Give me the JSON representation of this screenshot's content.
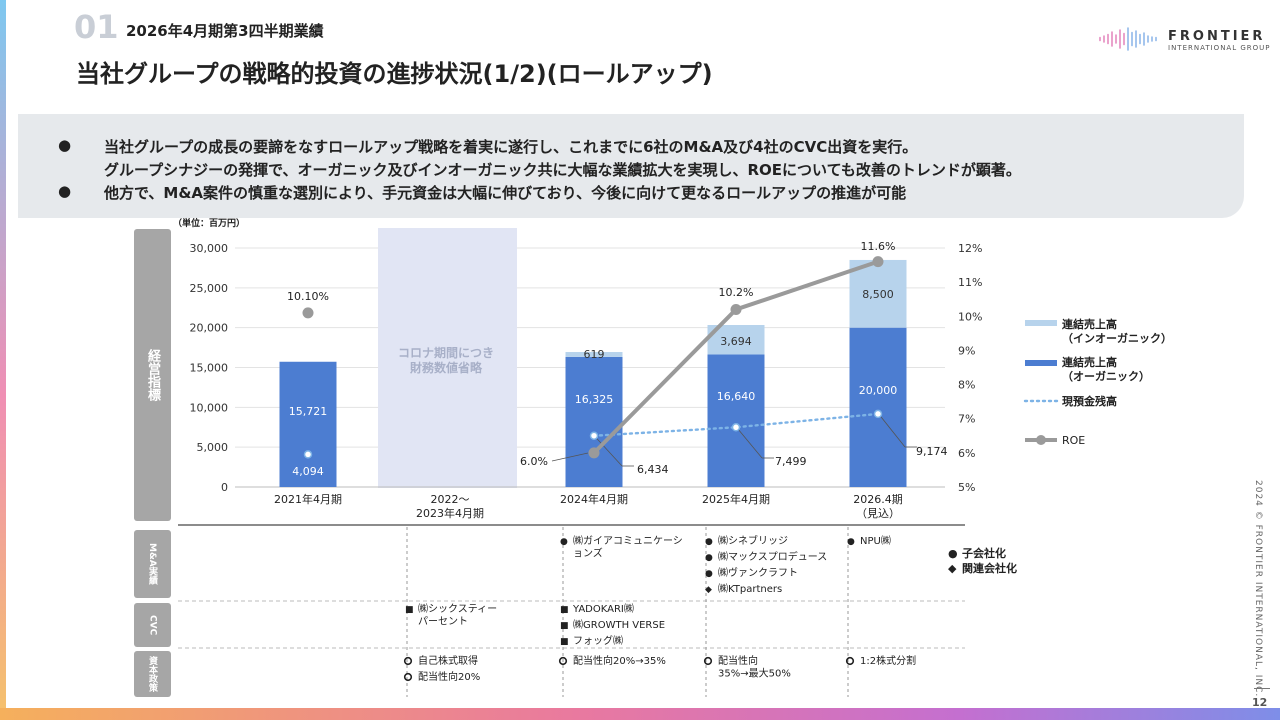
{
  "header": {
    "section_number": "01",
    "section_title": "2026年4月期第3四半期業績",
    "title": "当社グループの戦略的投資の進捗状況(1/2)(ロールアップ)",
    "logo_name": "FRONTIER",
    "logo_sub": "INTERNATIONAL GROUP"
  },
  "summary": {
    "bullets": [
      {
        "mark": "●",
        "lines": [
          "当社グループの成長の要諦をなすロールアップ戦略を着実に遂行し、これまでに6社のM&A及び4社のCVC出資を実行。",
          "グループシナジーの発揮で、オーガニック及びインオーガニック共に大幅な業績拡大を実現し、ROEについても改善のトレンドが顕著。"
        ]
      },
      {
        "mark": "●",
        "lines": [
          "他方で、M&A案件の慎重な選別により、手元資金は大幅に伸びており、今後に向けて更なるロールアップの推進が可能"
        ]
      }
    ]
  },
  "side_labels": {
    "kpi": "経営指標",
    "ma": "M&A実績",
    "cvc": "CVC",
    "capital": "資本政策"
  },
  "chart_data": {
    "type": "bar",
    "unit_label": "（単位：百万円）",
    "categories": [
      "2021年4月期",
      "2022～\n2023年4月期",
      "2024年4月期",
      "2025年4月期",
      "2026.4期\n（見込）"
    ],
    "series": [
      {
        "name": "連結売上高\n（オーガニック）",
        "type": "bar",
        "color": "#4c7dd1",
        "values": [
          15721,
          null,
          16325,
          16640,
          20000
        ],
        "labels": [
          "15,721",
          "",
          "16,325",
          "16,640",
          "20,000"
        ]
      },
      {
        "name": "連結売上高\n（インオーガニック）",
        "type": "bar",
        "color": "#b7d3ec",
        "values": [
          null,
          null,
          619,
          3694,
          8500
        ],
        "labels": [
          "",
          "",
          "619",
          "3,694",
          "8,500"
        ]
      },
      {
        "name": "現預金残高",
        "type": "line-dotted",
        "color": "#7db3e6",
        "values": [
          4094,
          null,
          6434,
          7499,
          9174
        ],
        "labels": [
          "4,094",
          "",
          "6,434",
          "7,499",
          "9,174"
        ]
      },
      {
        "name": "ROE",
        "type": "line",
        "color": "#9a9a9a",
        "axis": "right",
        "values": [
          10.1,
          null,
          6.0,
          10.2,
          11.6
        ],
        "labels": [
          "10.10%",
          "",
          "6.0%",
          "10.2%",
          "11.6%"
        ]
      }
    ],
    "left_axis": {
      "ticks": [
        0,
        5000,
        10000,
        15000,
        20000,
        25000,
        30000
      ],
      "tick_labels": [
        "0",
        "5,000",
        "10,000",
        "15,000",
        "20,000",
        "25,000",
        "30,000"
      ],
      "ylim": [
        0,
        30000
      ]
    },
    "right_axis": {
      "ticks": [
        5,
        6,
        7,
        8,
        9,
        10,
        11,
        12
      ],
      "tick_labels": [
        "5%",
        "6%",
        "7%",
        "8%",
        "9%",
        "10%",
        "11%",
        "12%"
      ],
      "ylim": [
        5,
        12
      ]
    },
    "covid_note": "コロナ期間につき\n財務数値省略",
    "legend_position": "right"
  },
  "events": {
    "ma": [
      [],
      [],
      [
        {
          "mark": "●",
          "text": "㈱ガイアコミュニケーシ\nョンズ"
        }
      ],
      [
        {
          "mark": "●",
          "text": "㈱シネブリッジ"
        },
        {
          "mark": "●",
          "text": "㈱マックスプロデュース"
        },
        {
          "mark": "●",
          "text": "㈱ヴァンクラフト"
        },
        {
          "mark": "◆",
          "text": "㈱KTpartners"
        }
      ],
      [
        {
          "mark": "●",
          "text": "NPU㈱"
        }
      ]
    ],
    "cvc": [
      [],
      [
        {
          "mark": "■",
          "text": "㈱シックスティー\nパーセント"
        }
      ],
      [
        {
          "mark": "■",
          "text": "YADOKARI㈱"
        },
        {
          "mark": "■",
          "text": "㈱GROWTH VERSE"
        },
        {
          "mark": "■",
          "text": "フォッグ㈱"
        }
      ],
      [],
      []
    ],
    "capital": [
      [],
      [
        {
          "mark": "○",
          "text": "自己株式取得"
        },
        {
          "mark": "○",
          "text": "配当性向20%"
        }
      ],
      [
        {
          "mark": "○",
          "text": "配当性向20%→35%"
        }
      ],
      [
        {
          "mark": "○",
          "text": "配当性向\n35%→最大50%"
        }
      ],
      [
        {
          "mark": "○",
          "text": "1:2株式分割"
        }
      ]
    ],
    "legend": [
      {
        "mark": "●",
        "text": "子会社化"
      },
      {
        "mark": "◆",
        "text": "関連会社化"
      }
    ]
  },
  "footer": {
    "copyright": "2024 © FRONTIER INTERNATIONAL, INC.",
    "page": "12"
  }
}
